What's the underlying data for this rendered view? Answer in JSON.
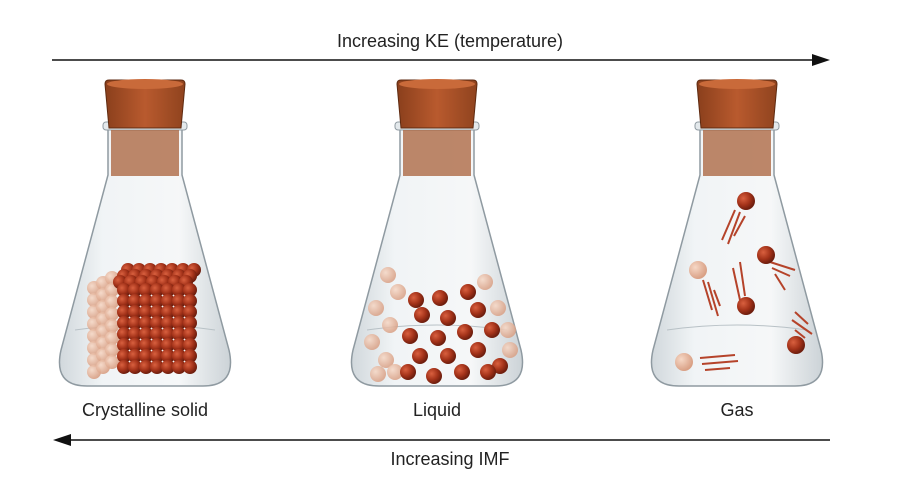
{
  "top_arrow": {
    "label": "Increasing KE (temperature)"
  },
  "flasks": [
    {
      "label": "Crystalline solid"
    },
    {
      "label": "Liquid"
    },
    {
      "label": "Gas"
    }
  ],
  "bottom_arrow": {
    "label": "Increasing IMF"
  }
}
